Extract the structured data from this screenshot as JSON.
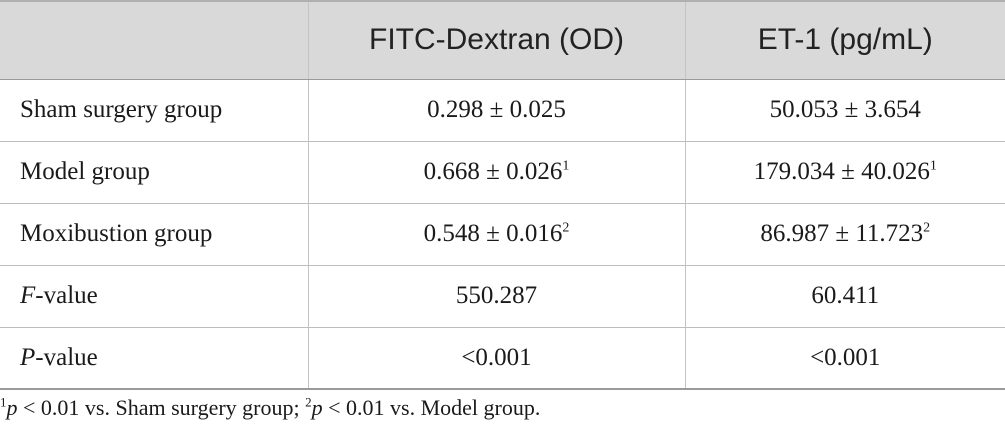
{
  "table": {
    "headers": [
      "",
      "FITC-Dextran (OD)",
      "ET-1 (pg/mL)"
    ],
    "rows": [
      {
        "label_italic": "",
        "label_rest": "Sham surgery group",
        "col1": "0.298 ± 0.025",
        "col1_sup": "",
        "col2": "50.053 ± 3.654",
        "col2_sup": ""
      },
      {
        "label_italic": "",
        "label_rest": "Model group",
        "col1": "0.668 ± 0.026",
        "col1_sup": "1",
        "col2": "179.034 ± 40.026",
        "col2_sup": "1"
      },
      {
        "label_italic": "",
        "label_rest": "Moxibustion group",
        "col1": "0.548 ± 0.016",
        "col1_sup": "2",
        "col2": "86.987 ± 11.723",
        "col2_sup": "2"
      },
      {
        "label_italic": "F",
        "label_rest": "-value",
        "col1": "550.287",
        "col1_sup": "",
        "col2": "60.411",
        "col2_sup": ""
      },
      {
        "label_italic": "P",
        "label_rest": "-value",
        "col1": "<0.001",
        "col1_sup": "",
        "col2": "<0.001",
        "col2_sup": ""
      }
    ]
  },
  "footnote": {
    "sup1": "1",
    "p1": "p",
    "text1": " < 0.01 vs. Sham surgery group; ",
    "sup2": "2",
    "p2": "p",
    "text2": " < 0.01 vs. Model group."
  }
}
